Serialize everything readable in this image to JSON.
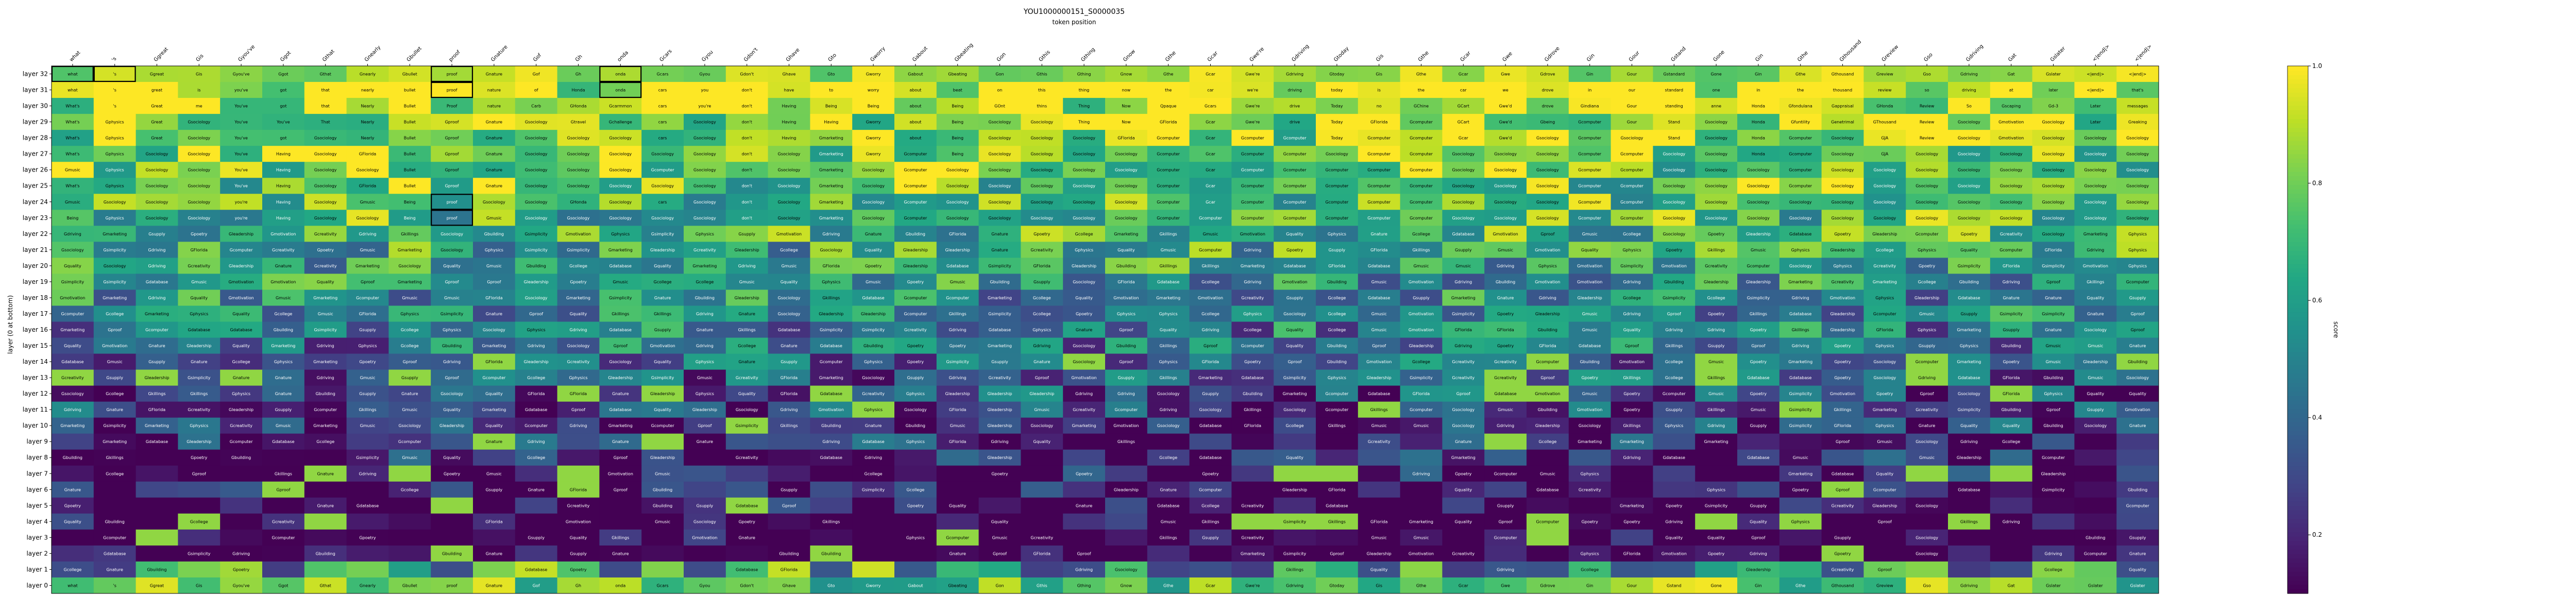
{
  "chart_data": {
    "type": "heatmap",
    "title": "YOU1000000151_S0000035",
    "xlabel": "token position",
    "ylabel": "layer (0 at bottom)",
    "colorbar_label": "score",
    "colorbar_ticks": [
      0.2,
      0.4,
      0.6,
      0.8,
      1.0
    ],
    "vmin": 0.1,
    "vmax": 1.0,
    "colormap": "viridis",
    "x_tokens": [
      "what",
      "'s",
      "Ggreat",
      "Gis",
      "Gyou've",
      "Ggot",
      "Gthat",
      "Gnearly",
      "Gbullet",
      "proof",
      "Gnature",
      "Gof",
      "Gh",
      "onda",
      "Gcars",
      "Gyou",
      "Gdon't",
      "Ghave",
      "Gto",
      "Gworry",
      "Gabout",
      "Gbeating",
      "Gon",
      "Gthis",
      "Gthing",
      "Gnow",
      "Gthe",
      "Gcar",
      "Gwe're",
      "Gdriving",
      "Gtoday",
      "Gis",
      "Gthe",
      "Gcar",
      "Gwe",
      "Gdrove",
      "Gin",
      "Gour",
      "Gstand",
      "Gone",
      "Gin",
      "Gthe",
      "Gthousand",
      "Greview",
      "Gso",
      "Gdriving",
      "Gat",
      "Gslater",
      "<|end|>",
      "<|end|>"
    ],
    "y_layers": [
      "layer 32",
      "layer 31",
      "layer 30",
      "layer 29",
      "layer 28",
      "layer 27",
      "layer 26",
      "layer 25",
      "layer 24",
      "layer 23",
      "layer 22",
      "layer 21",
      "layer 20",
      "layer 19",
      "layer 18",
      "layer 17",
      "layer 16",
      "layer 15",
      "layer 14",
      "layer 13",
      "layer 12",
      "layer 11",
      "layer 10",
      "layer 9",
      "layer 8",
      "layer 7",
      "layer 6",
      "layer 5",
      "layer 4",
      "layer 3",
      "layer 2",
      "layer 1",
      "layer 0"
    ],
    "top_rows": [
      [
        "what",
        "'s",
        "Ggreat",
        "Gis",
        "Gyou've",
        "Ggot",
        "Gthat",
        "Gnearly",
        "Gbullet",
        "proof",
        "Gnature",
        "Gof",
        "Gh",
        "onda",
        "Gcars",
        "Gyou",
        "Gdon't",
        "Ghave",
        "Gto",
        "Gworry",
        "Gabout",
        "Gbeating",
        "Gon",
        "Gthis",
        "Gthing",
        "Gnow",
        "Gthe",
        "Gcar",
        "Gwe're",
        "Gdriving",
        "Gtoday",
        "Gis",
        "Gthe",
        "Gcar",
        "Gwe",
        "Gdrove",
        "Gin",
        "Gour",
        "Gstandard",
        "Gone",
        "Gin",
        "Gthe",
        "Gthousand",
        "Greview",
        "Gso",
        "Gdriving",
        "Gat",
        "Gslater",
        "<|end|>",
        "<|end|>"
      ],
      [
        "what",
        "'s",
        "great",
        "is",
        "you've",
        "got",
        "that",
        "nearly",
        "bullet",
        "proof",
        "nature",
        "of",
        "Honda",
        "onda",
        "cars",
        "you",
        "don't",
        "have",
        "to",
        "worry",
        "about",
        "beat",
        "on",
        "this",
        "thing",
        "now",
        "the",
        "car",
        "we're",
        "driving",
        "today",
        "is",
        "the",
        "car",
        "we",
        "drove",
        "in",
        "our",
        "standard",
        "one",
        "in",
        "the",
        "thousand",
        "review",
        "so",
        "driving",
        "at",
        "later",
        "<|end|>",
        "that's"
      ],
      [
        "What's",
        "'s",
        "Great",
        "me",
        "You've",
        "got",
        "that",
        "Nearly",
        "Bullet",
        "Proof",
        "nature",
        "Carb",
        "GHonda",
        "Gcarmmon",
        "cars",
        "you're",
        "don't",
        "Having",
        "Being",
        "Being",
        "about",
        "Being",
        "GOnt",
        "thins",
        "Thing",
        "Now",
        "Qpaque",
        "Gcars",
        "Gwe're",
        "drive",
        "Today",
        "no",
        "GChine",
        "GCart",
        "Gwe'd",
        "drove",
        "Gindiana",
        "Gour",
        "standing",
        "anne",
        "Honda",
        "Gfondulana",
        "Gappraisal",
        "GHonda",
        "Review",
        "So",
        "Gscaping",
        "Gd-3",
        "Later",
        "messages"
      ],
      [
        "What's",
        "Gphysics",
        "Great",
        "Gsociology",
        "You've",
        "You've",
        "That",
        "Nearly",
        "Bullet",
        "Gproof",
        "Gnature",
        "Gsociology",
        "Gtravel",
        "Gchallenge",
        "cars",
        "Gsociology",
        "don't",
        "Having",
        "Having",
        "Gworry",
        "about",
        "Being",
        "Gsociology",
        "Gsociology",
        "Thing",
        "Now",
        "GFlorida",
        "Gcar",
        "Gwe're",
        "drive",
        "Today",
        "GFlorida",
        "Gcomputer",
        "GCart",
        "Gwe'd",
        "Gbeing",
        "Gcomputer",
        "Gour",
        "Stand",
        "Gsociology",
        "Honda",
        "Gfuntility",
        "Genetrimal",
        "GThousand",
        "Review",
        "Gsociology",
        "Gmotivation",
        "Gsociology",
        "Later",
        "Greaking"
      ],
      [
        "What's",
        "Gphysics",
        "Great",
        "Gsociology",
        "You've",
        "got",
        "Gsociology",
        "Nearly",
        "Bullet",
        "Gproof",
        "Gnature",
        "Gsociology",
        "Gsociology",
        "Gsociology",
        "cars",
        "Gsociology",
        "don't",
        "Having",
        "Gmarketing",
        "Gworry",
        "about",
        "Being",
        "Gsociology",
        "Gsociology",
        "Gsociology",
        "GFlorida",
        "Gcomputer",
        "Gcar",
        "Gcomputer",
        "Gcomputer",
        "Today",
        "Gcomputer",
        "Gcomputer",
        "Gcar",
        "Gwe'd",
        "Gsociology",
        "Gcomputer",
        "Gsociology",
        "Stand",
        "Gsociology",
        "Honda",
        "Gcomputer",
        "Gsociology",
        "GJA",
        "Review",
        "Gsociology",
        "Gmotivation",
        "Gsociology",
        "Gsociology",
        "Gsociology"
      ],
      [
        "What's",
        "Gphysics",
        "Gsociology",
        "Gsociology",
        "You've",
        "Having",
        "Gsociology",
        "GFlorida",
        "Bullet",
        "Gproof",
        "Gnature",
        "Gsociology",
        "Gsociology",
        "Gsociology",
        "Gsociology",
        "Gsociology",
        "don't",
        "Gsociology",
        "Gmarketing",
        "Gworry",
        "Gcomputer",
        "Being",
        "Gsociology",
        "Gsociology",
        "Gsociology",
        "Gsociology",
        "Gcomputer",
        "Gcar",
        "Gcomputer",
        "Gcomputer",
        "Gsociology",
        "Gcomputer",
        "Gcomputer",
        "Gsociology",
        "Gsociology",
        "Gsociology",
        "Gcomputer",
        "Gcomputer",
        "Gsociology",
        "Gsociology",
        "Honda",
        "Gcomputer",
        "Gsociology",
        "GJA",
        "Gsociology",
        "Gsociology",
        "Gsociology",
        "Gsociology",
        "Gsociology",
        "Gsociology"
      ],
      [
        "Gmusic",
        "Gphysics",
        "Gsociology",
        "Gsociology",
        "You've",
        "Having",
        "Gsociology",
        "Gsociology",
        "Bullet",
        "Gproof",
        "Gnature",
        "Gsociology",
        "Gsociology",
        "Gsociology",
        "Gcomputer",
        "Gsociology",
        "don't",
        "Gsociology",
        "Gmarketing",
        "Gsociology",
        "Gcomputer",
        "Gsociology",
        "Gsociology",
        "Gsociology",
        "Gsociology",
        "Gsociology",
        "Gcomputer",
        "Gcar",
        "Gcomputer",
        "Gcomputer",
        "Gcomputer",
        "Gcomputer",
        "Gcomputer",
        "Gsociology",
        "Gsociology",
        "Gsociology",
        "Gcomputer",
        "Gcomputer",
        "Gsociology",
        "Gsociology",
        "Gsociology",
        "Gcomputer",
        "Gsociology",
        "Gsociology",
        "Gsociology",
        "Gsociology",
        "Gsociology",
        "Gsociology",
        "Gsociology",
        "Gsociology"
      ],
      [
        "What's",
        "Gphysics",
        "Gsociology",
        "Gsociology",
        "You've",
        "Having",
        "Gsociology",
        "GFlorida",
        "Bullet",
        "Gproof",
        "Gnature",
        "Gsociology",
        "Gsociology",
        "Gsociology",
        "Gsociology",
        "Gsociology",
        "don't",
        "Gsociology",
        "Gmarketing",
        "Gsociology",
        "Gcomputer",
        "Gsociology",
        "Gsociology",
        "Gsociology",
        "Gsociology",
        "Gsociology",
        "Gcomputer",
        "Gcar",
        "Gcomputer",
        "Gcomputer",
        "Gcomputer",
        "Gcomputer",
        "Gcomputer",
        "Gsociology",
        "Gsociology",
        "Gsociology",
        "Gcomputer",
        "Gcomputer",
        "Gsociology",
        "Gsociology",
        "Gsociology",
        "Gcomputer",
        "Gsociology",
        "Gsociology",
        "Gsociology",
        "Gsociology",
        "Gsociology",
        "Gsociology",
        "Gsociology",
        "Gsociology"
      ],
      [
        "Gmusic",
        "Gsociology",
        "Gsociology",
        "Gsociology",
        "you're",
        "Having",
        "Gsociology",
        "Gmusic",
        "Being",
        "proof",
        "Gsociology",
        "Gsociology",
        "GHonda",
        "Gsociology",
        "cars",
        "Gsociology",
        "don't",
        "Gsociology",
        "Gmarketing",
        "Gsociology",
        "Gcomputer",
        "Gsociology",
        "Gsociology",
        "Gsociology",
        "Gsociology",
        "Gsociology",
        "Gcomputer",
        "Gcar",
        "Gcomputer",
        "Gcomputer",
        "Gcomputer",
        "Gcomputer",
        "Gcomputer",
        "Gsociology",
        "Gsociology",
        "Gsociology",
        "Gcomputer",
        "Gcomputer",
        "Gsociology",
        "Gsociology",
        "Gsociology",
        "Gsociology",
        "Gsociology",
        "Gsociology",
        "Gsociology",
        "Gsociology",
        "Gsociology",
        "Gsociology",
        "Gsociology",
        "Gsociology"
      ],
      [
        "Being",
        "Gphysics",
        "Gsociology",
        "Gsociology",
        "you're",
        "Having",
        "Gsociology",
        "Gsociology",
        "Being",
        "proof",
        "Gmusic",
        "Gsociology",
        "Gsociology",
        "Gsociology",
        "Gsociology",
        "Gsociology",
        "don't",
        "Gsociology",
        "Gmarketing",
        "Gsociology",
        "Gcomputer",
        "Gsociology",
        "Gsociology",
        "Gsociology",
        "Gsociology",
        "Gsociology",
        "Gcomputer",
        "Gcomputer",
        "Gcomputer",
        "Gcomputer",
        "Gcomputer",
        "Gcomputer",
        "Gcomputer",
        "Gsociology",
        "Gsociology",
        "Gsociology",
        "Gcomputer",
        "Gcomputer",
        "Gsociology",
        "Gsociology",
        "Gsociology",
        "Gsociology",
        "Gsociology",
        "Gsociology",
        "Gsociology",
        "Gsociology",
        "Gsociology",
        "Gsociology",
        "Gsociology",
        "Gsociology"
      ]
    ],
    "fill_vocab": [
      "Gsociology",
      "Gcomputer",
      "Gmotivation",
      "Gmarketing",
      "Gphysics",
      "Gquality",
      "Gsimplicity",
      "GFlorida",
      "Gdatabase",
      "Gpoetry",
      "Gdriving",
      "Gsupply",
      "Gmusic",
      "Gnature",
      "Gproof",
      "Gleadership",
      "Gkillings",
      "Gcollege",
      "Gcreativity",
      "Gbuilding"
    ],
    "bottom_rows": [
      [
        "what",
        "'s",
        "Ggreat",
        "Gis",
        "Gyou've",
        "Ggot",
        "Gthat",
        "Gnearly",
        "Gbullet",
        "proof",
        "Gnature",
        "Gof",
        "Gh",
        "onda",
        "Gcars",
        "Gyou",
        "Gdon't",
        "Ghave",
        "Gto",
        "Gworry",
        "Gabout",
        "Gbeating",
        "Gon",
        "Gthis",
        "Gthing",
        "Gnow",
        "Gthe",
        "Gcar",
        "Gwe're",
        "Gdriving",
        "Gtoday",
        "Gis",
        "Gthe",
        "Gcar",
        "Gwe",
        "Gdrove",
        "Gin",
        "Gour",
        "Gstand",
        "Gone",
        "Gin",
        "Gthe",
        "Gthousand",
        "Greview",
        "Gso",
        "Gdriving",
        "Gat",
        "Gslater",
        "Gslater",
        "Gslater"
      ]
    ],
    "boxed_cells": [
      [
        0,
        0
      ],
      [
        0,
        1
      ],
      [
        0,
        9
      ],
      [
        0,
        13
      ],
      [
        1,
        13
      ],
      [
        8,
        9
      ],
      [
        9,
        9
      ],
      [
        1,
        9
      ]
    ]
  }
}
